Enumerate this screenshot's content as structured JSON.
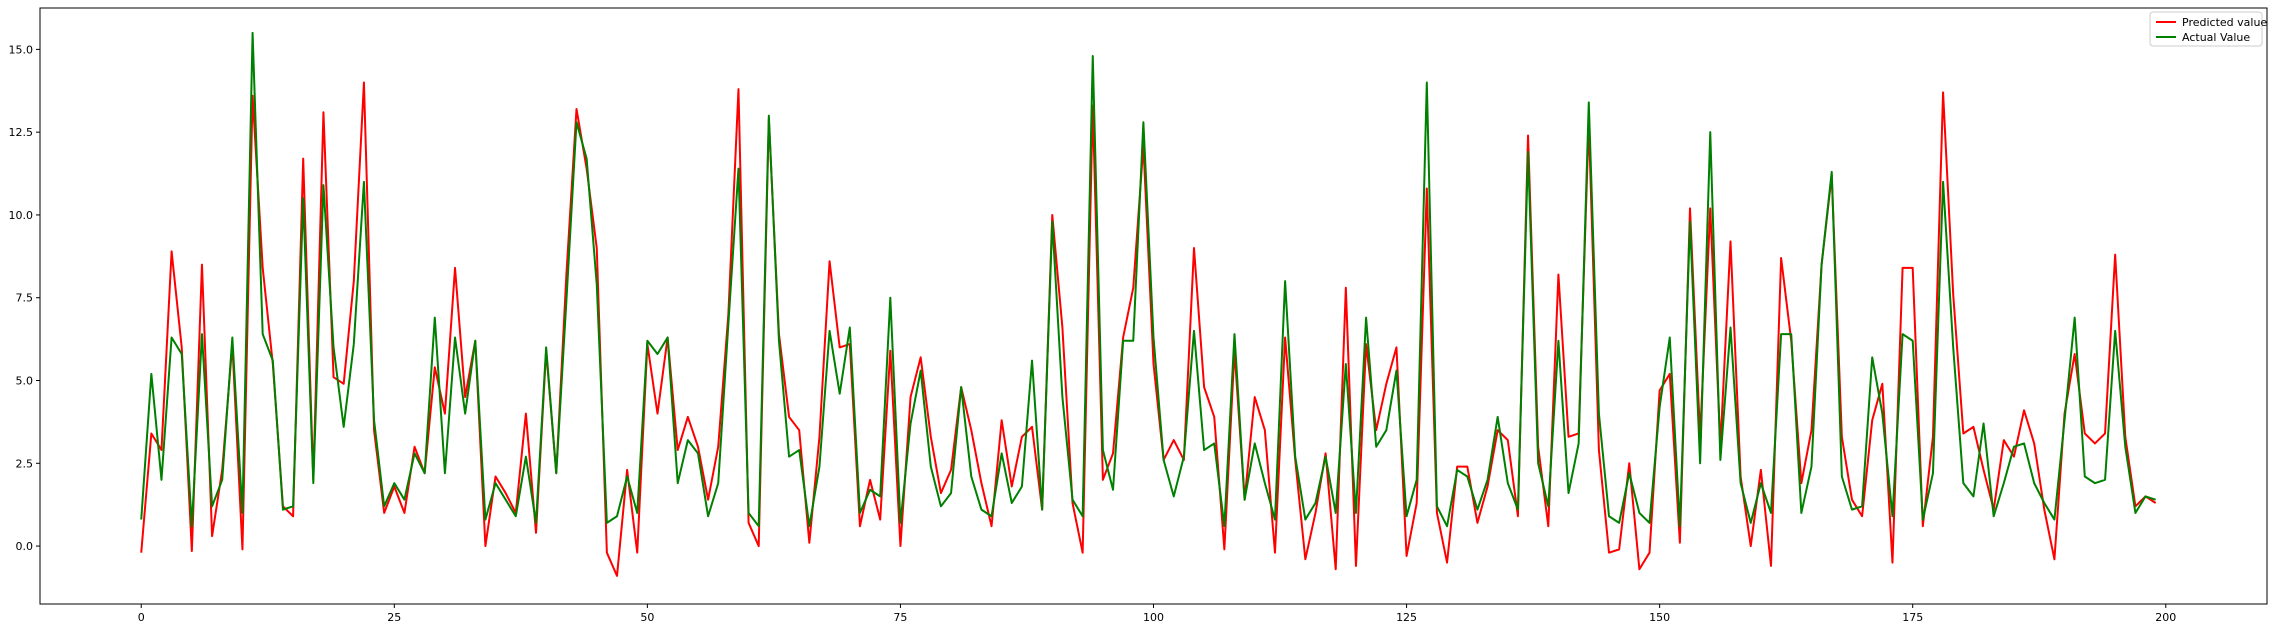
{
  "chart_data": {
    "type": "line",
    "title": "",
    "xlabel": "",
    "ylabel": "",
    "xlim": [
      -10,
      210
    ],
    "ylim": [
      -1.75,
      16.25
    ],
    "x_ticks": [
      0,
      25,
      50,
      75,
      100,
      125,
      150,
      175,
      200
    ],
    "y_ticks": [
      0.0,
      2.5,
      5.0,
      7.5,
      10.0,
      12.5,
      15.0
    ],
    "x_tick_labels": [
      "0",
      "25",
      "50",
      "75",
      "100",
      "125",
      "150",
      "175",
      "200"
    ],
    "y_tick_labels": [
      "0.0",
      "2.5",
      "5.0",
      "7.5",
      "10.0",
      "12.5",
      "15.0"
    ],
    "grid": false,
    "legend_position": "top-right",
    "series": [
      {
        "name": "Predicted value",
        "color": "#ff0000",
        "values": [
          -0.2,
          3.4,
          2.9,
          8.9,
          6.0,
          -0.15,
          8.5,
          0.3,
          2.3,
          6.1,
          -0.1,
          13.6,
          8.4,
          5.5,
          1.2,
          0.9,
          11.7,
          2.0,
          13.1,
          5.1,
          4.9,
          8.0,
          14.0,
          3.5,
          1.0,
          1.8,
          1.0,
          3.0,
          2.2,
          5.4,
          4.0,
          8.4,
          4.5,
          6.2,
          0.0,
          2.1,
          1.6,
          1.0,
          4.0,
          0.4,
          5.9,
          2.2,
          8.2,
          13.2,
          11.4,
          9.0,
          -0.2,
          -0.9,
          2.3,
          -0.2,
          6.1,
          4.0,
          6.3,
          2.9,
          3.9,
          3.0,
          1.4,
          3.0,
          7.0,
          13.8,
          0.7,
          0.0,
          12.9,
          6.4,
          3.9,
          3.5,
          0.1,
          3.3,
          8.6,
          6.0,
          6.1,
          0.6,
          2.0,
          0.8,
          5.9,
          0.0,
          4.5,
          5.7,
          3.3,
          1.6,
          2.3,
          4.8,
          3.5,
          1.9,
          0.6,
          3.8,
          1.8,
          3.3,
          3.6,
          1.1,
          10.0,
          6.6,
          1.3,
          -0.2,
          13.3,
          2.0,
          2.8,
          6.3,
          7.8,
          12.1,
          5.5,
          2.6,
          3.2,
          2.6,
          9.0,
          4.8,
          3.9,
          -0.1,
          5.9,
          1.4,
          4.5,
          3.5,
          -0.2,
          6.3,
          2.6,
          -0.4,
          1.0,
          2.8,
          -0.7,
          7.8,
          -0.6,
          6.1,
          3.5,
          4.9,
          6.0,
          -0.3,
          1.3,
          10.8,
          1.0,
          -0.5,
          2.4,
          2.4,
          0.7,
          1.8,
          3.5,
          3.2,
          0.9,
          12.4,
          3.0,
          0.6,
          8.2,
          3.3,
          3.4,
          12.8,
          2.9,
          -0.2,
          -0.1,
          2.5,
          -0.7,
          -0.2,
          4.7,
          5.2,
          0.1,
          10.2,
          3.3,
          10.2,
          3.0,
          9.2,
          2.1,
          0.0,
          2.3,
          -0.6,
          8.7,
          6.2,
          1.9,
          3.5,
          8.5,
          11.2,
          3.3,
          1.4,
          0.9,
          3.8,
          4.9,
          -0.5,
          8.4,
          8.4,
          0.6,
          3.3,
          13.7,
          7.6,
          3.4,
          3.6,
          2.3,
          1.1,
          3.2,
          2.7,
          4.1,
          3.1,
          1.1,
          -0.4,
          4.0,
          5.8,
          3.4,
          3.1,
          3.4,
          8.8,
          3.3,
          1.2,
          1.5,
          1.3
        ]
      },
      {
        "name": "Actual Value",
        "color": "#008000",
        "values": [
          0.8,
          5.2,
          2.0,
          6.3,
          5.8,
          0.6,
          6.4,
          1.2,
          2.0,
          6.3,
          1.0,
          15.5,
          6.4,
          5.6,
          1.1,
          1.2,
          10.5,
          1.9,
          10.9,
          6.0,
          3.6,
          6.1,
          11.0,
          3.8,
          1.2,
          1.9,
          1.4,
          2.8,
          2.2,
          6.9,
          2.2,
          6.3,
          4.0,
          6.2,
          0.8,
          1.9,
          1.4,
          0.9,
          2.7,
          0.7,
          6.0,
          2.2,
          7.4,
          12.8,
          11.7,
          7.9,
          0.7,
          0.9,
          2.1,
          1.0,
          6.2,
          5.8,
          6.3,
          1.9,
          3.2,
          2.8,
          0.9,
          1.9,
          6.7,
          11.4,
          1.0,
          0.6,
          13.0,
          6.2,
          2.7,
          2.9,
          0.6,
          2.4,
          6.5,
          4.6,
          6.6,
          1.0,
          1.7,
          1.5,
          7.5,
          0.7,
          3.7,
          5.3,
          2.4,
          1.2,
          1.6,
          4.8,
          2.1,
          1.1,
          0.9,
          2.8,
          1.3,
          1.8,
          5.6,
          1.1,
          9.8,
          4.5,
          1.4,
          0.9,
          14.8,
          2.9,
          1.7,
          6.2,
          6.2,
          12.8,
          6.3,
          2.6,
          1.5,
          2.7,
          6.5,
          2.9,
          3.1,
          0.6,
          6.4,
          1.4,
          3.1,
          1.9,
          0.8,
          8.0,
          2.7,
          0.8,
          1.3,
          2.7,
          1.0,
          5.5,
          1.0,
          6.9,
          3.0,
          3.5,
          5.3,
          0.9,
          2.0,
          14.0,
          1.2,
          0.6,
          2.3,
          2.1,
          1.1,
          2.0,
          3.9,
          1.9,
          1.1,
          11.9,
          2.5,
          1.2,
          6.2,
          1.6,
          3.1,
          13.4,
          4.0,
          0.9,
          0.7,
          2.2,
          1.0,
          0.7,
          4.2,
          6.3,
          0.6,
          9.8,
          2.5,
          12.5,
          2.6,
          6.6,
          1.9,
          0.7,
          1.9,
          1.0,
          6.4,
          6.4,
          1.0,
          2.4,
          8.5,
          11.3,
          2.1,
          1.1,
          1.2,
          5.7,
          4.0,
          0.9,
          6.4,
          6.2,
          0.8,
          2.2,
          11.0,
          6.0,
          1.9,
          1.5,
          3.7,
          0.9,
          1.9,
          3.0,
          3.1,
          1.9,
          1.3,
          0.8,
          3.8,
          6.9,
          2.1,
          1.9,
          2.0,
          6.5,
          3.0,
          1.0,
          1.5,
          1.4
        ]
      }
    ]
  }
}
